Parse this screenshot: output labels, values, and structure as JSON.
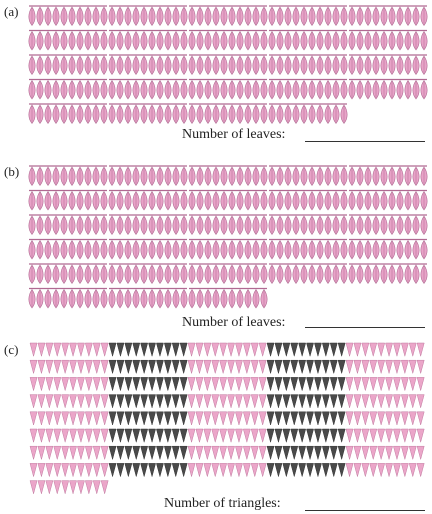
{
  "sections": [
    {
      "label": "(a)",
      "kind": "leaves",
      "groups_per_row": [
        5,
        5,
        5,
        5,
        4
      ],
      "items_per_group": 10,
      "answer_label": "Number of leaves:"
    },
    {
      "label": "(b)",
      "kind": "leaves",
      "groups_per_row": [
        5,
        5,
        5,
        5,
        5,
        3
      ],
      "items_per_group": 10,
      "answer_label": "Number of leaves:"
    },
    {
      "label": "(c)",
      "kind": "triangles",
      "groups_per_row": [
        5,
        5,
        5,
        5,
        5,
        5,
        5,
        5,
        1
      ],
      "items_per_group": 10,
      "group_colors": [
        "pink",
        "dark",
        "pink",
        "dark",
        "pink"
      ],
      "answer_label": "Number of triangles:"
    }
  ],
  "colors": {
    "leaf_fill": "#e8a3c8",
    "leaf_stroke": "#b06a92",
    "triangle_pink": "#eba6c9",
    "triangle_dark": "#4a4a4a",
    "text": "#222222"
  }
}
